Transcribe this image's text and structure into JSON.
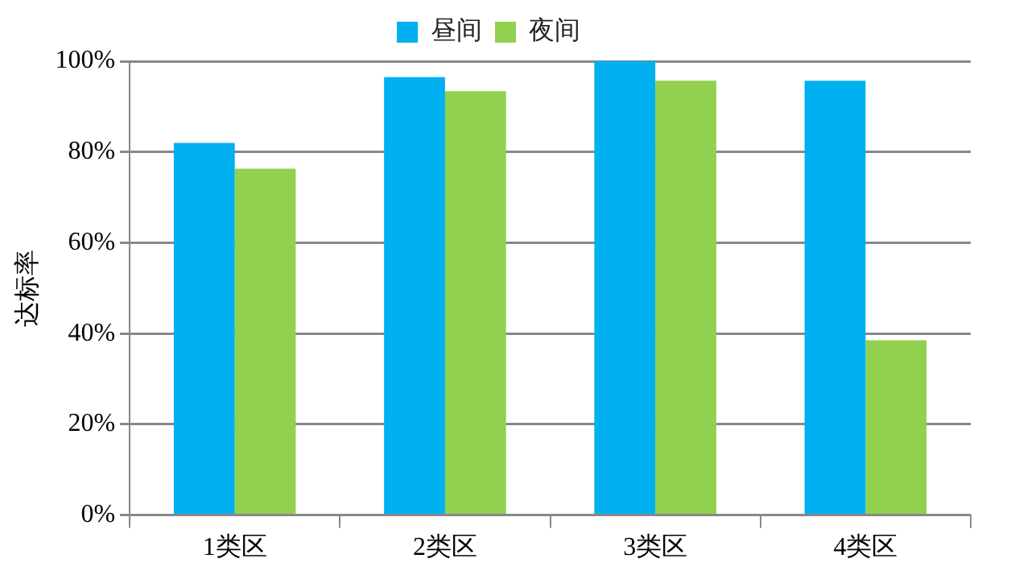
{
  "chart_data": {
    "type": "bar",
    "ylabel": "达标率",
    "categories": [
      "1类区",
      "2类区",
      "3类区",
      "4类区"
    ],
    "series": [
      {
        "name": "昼间",
        "color": "#00b0f0",
        "values": [
          82,
          96.5,
          100,
          95.7
        ]
      },
      {
        "name": "夜间",
        "color": "#92d050",
        "values": [
          76.3,
          93.4,
          95.7,
          38.5
        ]
      }
    ],
    "ylim": [
      0,
      100
    ],
    "yticks": [
      {
        "value": 0,
        "label": "0%"
      },
      {
        "value": 20,
        "label": "20%"
      },
      {
        "value": 40,
        "label": "40%"
      },
      {
        "value": 60,
        "label": "60%"
      },
      {
        "value": 80,
        "label": "80%"
      },
      {
        "value": 100,
        "label": "100%"
      }
    ],
    "grid": "y",
    "legend": "top"
  }
}
